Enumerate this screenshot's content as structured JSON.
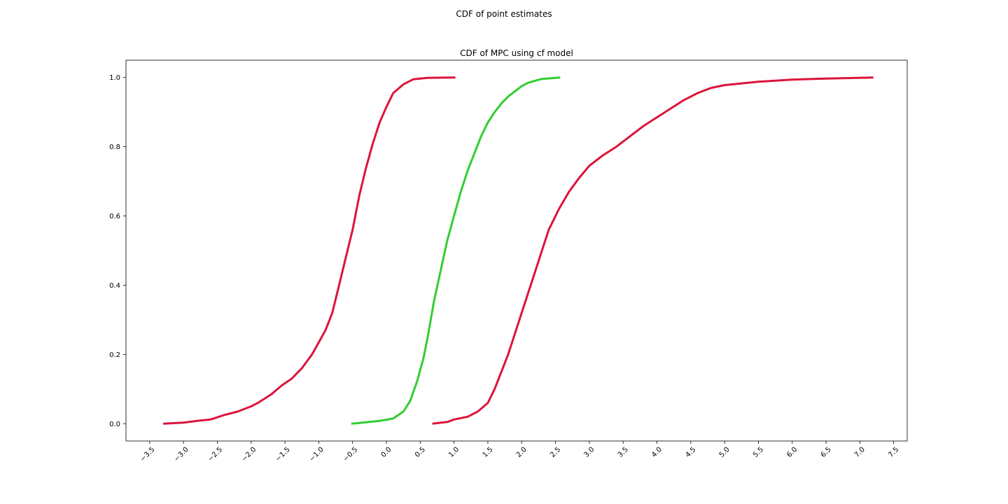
{
  "figure": {
    "suptitle": "CDF of point estimates"
  },
  "chart_data": {
    "type": "line",
    "title": "CDF of MPC using cf model",
    "xlabel": "",
    "ylabel": "",
    "xlim": [
      -3.85,
      7.7
    ],
    "ylim": [
      -0.05,
      1.05
    ],
    "x_ticks": [
      -3.5,
      -3.0,
      -2.5,
      -2.0,
      -1.5,
      -1.0,
      -0.5,
      0.0,
      0.5,
      1.0,
      1.5,
      2.0,
      2.5,
      3.0,
      3.5,
      4.0,
      4.5,
      5.0,
      5.5,
      6.0,
      6.5,
      7.0,
      7.5
    ],
    "x_tick_labels": [
      "−3.5",
      "−3.0",
      "−2.5",
      "−2.0",
      "−1.5",
      "−1.0",
      "−0.5",
      "0.0",
      "0.5",
      "1.0",
      "1.5",
      "2.0",
      "2.5",
      "3.0",
      "3.5",
      "4.0",
      "4.5",
      "5.0",
      "5.5",
      "6.0",
      "6.5",
      "7.0",
      "7.5"
    ],
    "y_ticks": [
      0.0,
      0.2,
      0.4,
      0.6,
      0.8,
      1.0
    ],
    "y_tick_labels": [
      "0.0",
      "0.2",
      "0.4",
      "0.6",
      "0.8",
      "1.0"
    ],
    "grid": false,
    "legend": null,
    "series": [
      {
        "color": "#dc143c",
        "points": [
          [
            -3.3,
            0.0
          ],
          [
            -3.0,
            0.003
          ],
          [
            -2.8,
            0.008
          ],
          [
            -2.6,
            0.012
          ],
          [
            -2.4,
            0.025
          ],
          [
            -2.2,
            0.035
          ],
          [
            -2.0,
            0.05
          ],
          [
            -1.9,
            0.06
          ],
          [
            -1.7,
            0.085
          ],
          [
            -1.55,
            0.11
          ],
          [
            -1.4,
            0.13
          ],
          [
            -1.25,
            0.16
          ],
          [
            -1.1,
            0.2
          ],
          [
            -1.0,
            0.235
          ],
          [
            -0.9,
            0.27
          ],
          [
            -0.8,
            0.32
          ],
          [
            -0.7,
            0.4
          ],
          [
            -0.6,
            0.48
          ],
          [
            -0.5,
            0.56
          ],
          [
            -0.4,
            0.66
          ],
          [
            -0.3,
            0.74
          ],
          [
            -0.2,
            0.81
          ],
          [
            -0.1,
            0.87
          ],
          [
            0.0,
            0.915
          ],
          [
            0.1,
            0.955
          ],
          [
            0.25,
            0.98
          ],
          [
            0.4,
            0.995
          ],
          [
            0.6,
            0.999
          ],
          [
            1.02,
            1.0
          ]
        ]
      },
      {
        "color": "#32cd32",
        "points": [
          [
            -0.52,
            0.0
          ],
          [
            -0.3,
            0.004
          ],
          [
            -0.1,
            0.008
          ],
          [
            0.1,
            0.015
          ],
          [
            0.25,
            0.035
          ],
          [
            0.35,
            0.065
          ],
          [
            0.45,
            0.12
          ],
          [
            0.55,
            0.19
          ],
          [
            0.62,
            0.26
          ],
          [
            0.7,
            0.35
          ],
          [
            0.8,
            0.44
          ],
          [
            0.9,
            0.53
          ],
          [
            1.0,
            0.6
          ],
          [
            1.1,
            0.67
          ],
          [
            1.2,
            0.73
          ],
          [
            1.3,
            0.78
          ],
          [
            1.4,
            0.83
          ],
          [
            1.5,
            0.87
          ],
          [
            1.6,
            0.9
          ],
          [
            1.7,
            0.925
          ],
          [
            1.8,
            0.945
          ],
          [
            1.9,
            0.96
          ],
          [
            2.0,
            0.975
          ],
          [
            2.1,
            0.985
          ],
          [
            2.3,
            0.996
          ],
          [
            2.57,
            1.0
          ]
        ]
      },
      {
        "color": "#dc143c",
        "points": [
          [
            0.68,
            0.0
          ],
          [
            0.9,
            0.005
          ],
          [
            1.0,
            0.012
          ],
          [
            1.2,
            0.02
          ],
          [
            1.35,
            0.035
          ],
          [
            1.5,
            0.06
          ],
          [
            1.6,
            0.1
          ],
          [
            1.7,
            0.15
          ],
          [
            1.8,
            0.2
          ],
          [
            1.9,
            0.26
          ],
          [
            2.0,
            0.32
          ],
          [
            2.1,
            0.38
          ],
          [
            2.2,
            0.44
          ],
          [
            2.3,
            0.5
          ],
          [
            2.4,
            0.56
          ],
          [
            2.55,
            0.62
          ],
          [
            2.7,
            0.67
          ],
          [
            2.85,
            0.71
          ],
          [
            3.0,
            0.745
          ],
          [
            3.2,
            0.775
          ],
          [
            3.4,
            0.8
          ],
          [
            3.6,
            0.83
          ],
          [
            3.8,
            0.86
          ],
          [
            4.0,
            0.885
          ],
          [
            4.2,
            0.91
          ],
          [
            4.4,
            0.935
          ],
          [
            4.6,
            0.955
          ],
          [
            4.8,
            0.97
          ],
          [
            5.0,
            0.978
          ],
          [
            5.5,
            0.988
          ],
          [
            6.0,
            0.994
          ],
          [
            6.5,
            0.997
          ],
          [
            7.2,
            1.0
          ]
        ]
      }
    ]
  }
}
